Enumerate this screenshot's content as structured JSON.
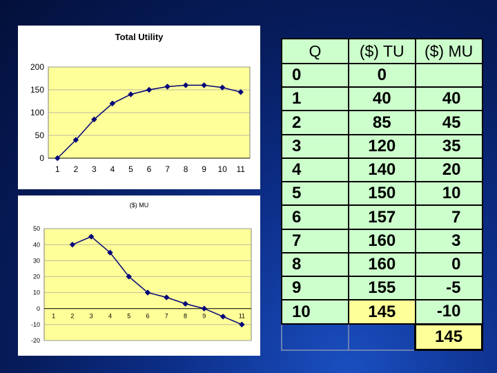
{
  "chart_data": [
    {
      "type": "line",
      "title": "Total Utility",
      "x": [
        1,
        2,
        3,
        4,
        5,
        6,
        7,
        8,
        9,
        10,
        11
      ],
      "series": [
        {
          "values": [
            0,
            40,
            85,
            120,
            140,
            150,
            157,
            160,
            160,
            155,
            145
          ]
        }
      ],
      "ylim": [
        0,
        200
      ],
      "yticks": [
        0,
        50,
        100,
        150,
        200
      ],
      "grid": true,
      "colors": {
        "plot_bg": "#ffff99",
        "line": "#00007a"
      }
    },
    {
      "type": "line",
      "title": "($) MU",
      "x": [
        2,
        3,
        4,
        5,
        6,
        7,
        8,
        9,
        10,
        11
      ],
      "series": [
        {
          "values": [
            40,
            45,
            35,
            20,
            10,
            7,
            3,
            0,
            -5,
            -10
          ]
        }
      ],
      "xticks": [
        1,
        2,
        3,
        4,
        5,
        6,
        7,
        8,
        9,
        11
      ],
      "ylim": [
        -20,
        50
      ],
      "yticks": [
        -20,
        -10,
        0,
        10,
        20,
        30,
        40,
        50
      ],
      "grid": true,
      "colors": {
        "plot_bg": "#ffff99",
        "line": "#00007a"
      }
    }
  ],
  "table": {
    "headers": [
      "Q",
      "($)  TU",
      "($)  MU"
    ],
    "rows": [
      [
        "0",
        "0",
        ""
      ],
      [
        "1",
        "40",
        "40"
      ],
      [
        "2",
        "85",
        "45"
      ],
      [
        "3",
        "120",
        "35"
      ],
      [
        "4",
        "140",
        "20"
      ],
      [
        "5",
        "150",
        "10"
      ],
      [
        "6",
        "157",
        "7"
      ],
      [
        "7",
        "160",
        "3"
      ],
      [
        "8",
        "160",
        "0"
      ],
      [
        "9",
        "155",
        "-5"
      ],
      [
        "10",
        "145",
        "-10"
      ]
    ],
    "total": "145",
    "colors": {
      "cell_bg": "#ccffcc",
      "highlight_bg": "#ffff99"
    }
  }
}
